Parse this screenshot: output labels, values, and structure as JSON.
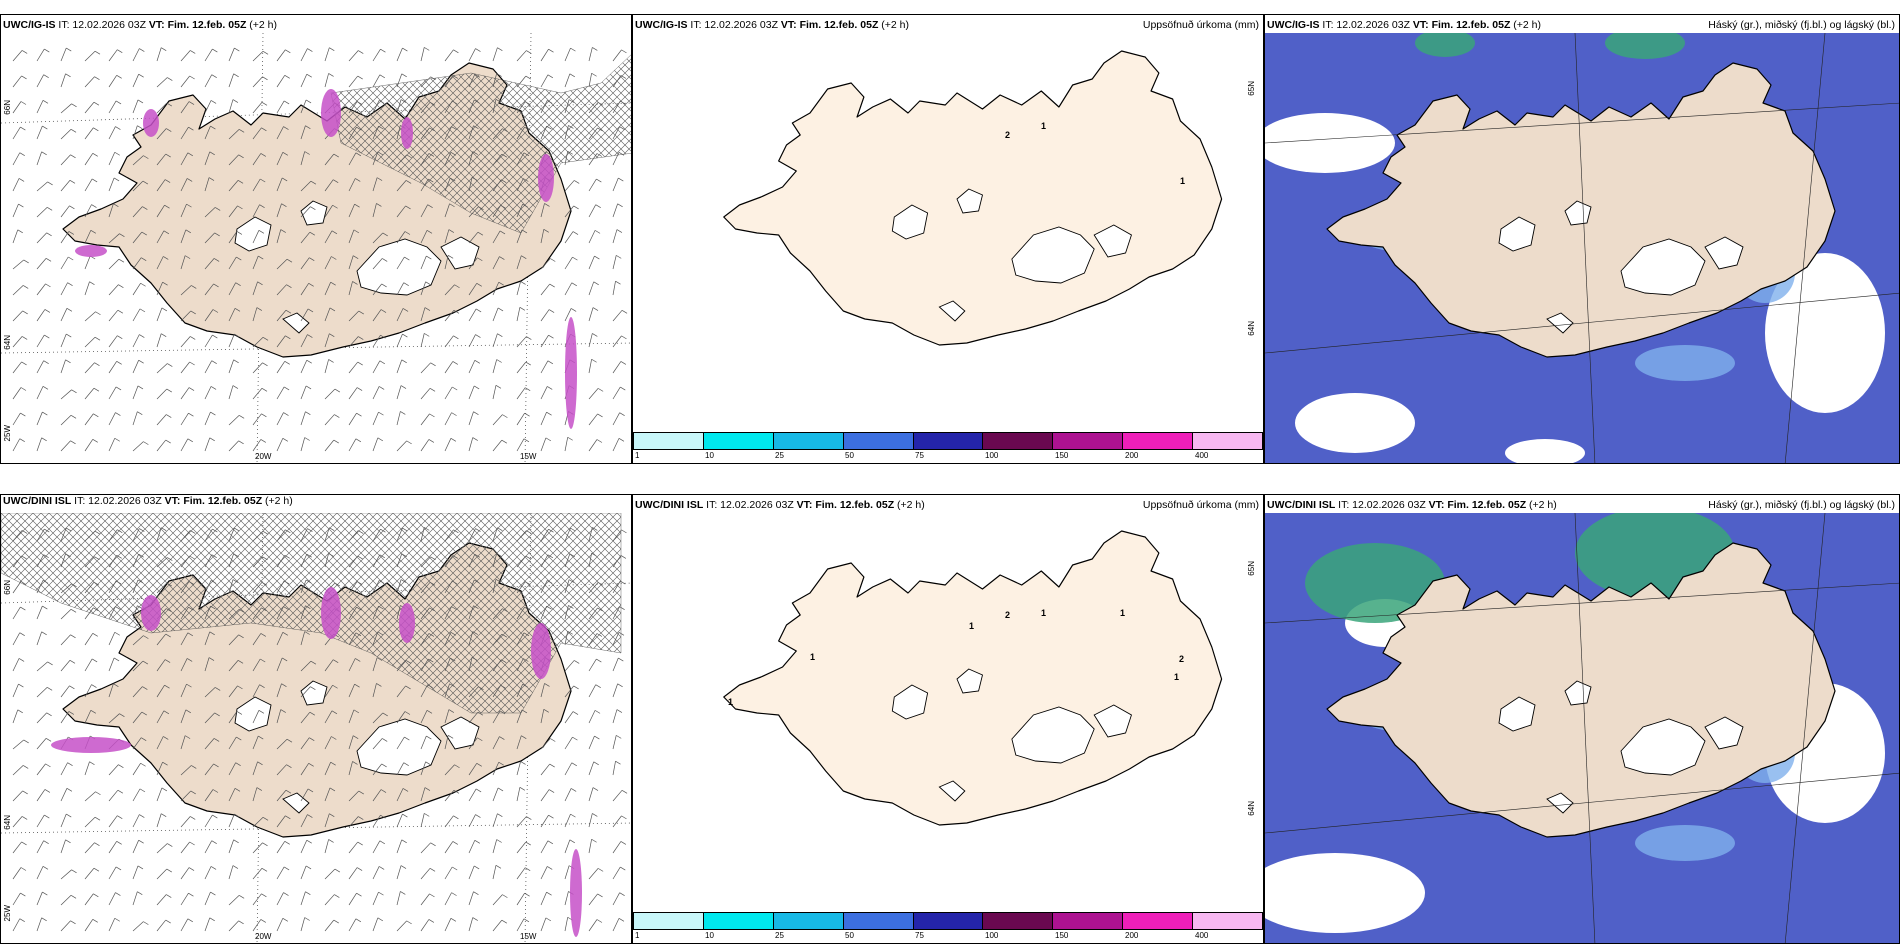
{
  "rows": [
    {
      "wind": {
        "header_model": "UWC/IG-IS",
        "header_it": "IT: 12.02.2026 03Z",
        "header_vt": "VT: Fim. 12.feb. 05Z",
        "header_lead": "(+2 h)",
        "lat_labels": [
          "66N",
          "64N",
          "25W"
        ],
        "lon_labels": [
          "20W",
          "15W"
        ]
      },
      "precip": {
        "header_model": "UWC/IG-IS",
        "header_it": "IT: 12.02.2026 03Z",
        "header_vt": "VT: Fim. 12.feb. 05Z",
        "header_lead": "(+2 h)",
        "title_right": "Uppsöfnuð úrkoma (mm)",
        "lat_labels": [
          "65N",
          "64N"
        ],
        "point_values": [
          "2",
          "1",
          "1"
        ]
      },
      "cloud": {
        "header_model": "UWC/IG-IS",
        "header_it": "IT: 12.02.2026 03Z",
        "header_vt": "VT: Fim. 12.feb. 05Z",
        "header_lead": "(+2 h)",
        "title_right": "Háský (gr.), miðský (fj.bl.) og lágský (bl.)"
      }
    },
    {
      "wind": {
        "header_model": "UWC/DINI ISL",
        "header_it": "IT: 12.02.2026 03Z",
        "header_vt": "VT: Fim. 12.feb. 05Z",
        "header_lead": "(+2 h)",
        "lat_labels": [
          "66N",
          "64N",
          "25W"
        ],
        "lon_labels": [
          "20W",
          "15W"
        ]
      },
      "precip": {
        "header_model": "UWC/DINI ISL",
        "header_it": "IT: 12.02.2026 03Z",
        "header_vt": "VT: Fim. 12.feb. 05Z",
        "header_lead": "(+2 h)",
        "title_right": "Uppsöfnuð úrkoma (mm)",
        "lat_labels": [
          "65N",
          "64N"
        ],
        "point_values": [
          "2",
          "1",
          "1",
          "1",
          "2",
          "1",
          "1",
          "1"
        ]
      },
      "cloud": {
        "header_model": "UWC/DINI ISL",
        "header_it": "IT: 12.02.2026 03Z",
        "header_vt": "VT: Fim. 12.feb. 05Z",
        "header_lead": "(+2 h)",
        "title_right": "Háský (gr.), miðský (fj.bl.) og lágský (bl.)"
      }
    }
  ],
  "colorbar": {
    "ticks": [
      "1",
      "10",
      "25",
      "50",
      "75",
      "100",
      "150",
      "200",
      "400"
    ],
    "colors": [
      "#c8f7fa",
      "#00e8ee",
      "#17b9e6",
      "#3c6fe0",
      "#2424aa",
      "#6a0850",
      "#ad1291",
      "#ee1fb9",
      "#f7b8f1"
    ]
  },
  "colors": {
    "land": "#eddccb",
    "land_precip": "#fdf1e3",
    "cloud_high_green": "#39a57a",
    "cloud_mid_blue": "#5060c8",
    "cloud_low_lightblue": "#7fb0ec",
    "wind_purple": "#c650c8"
  }
}
